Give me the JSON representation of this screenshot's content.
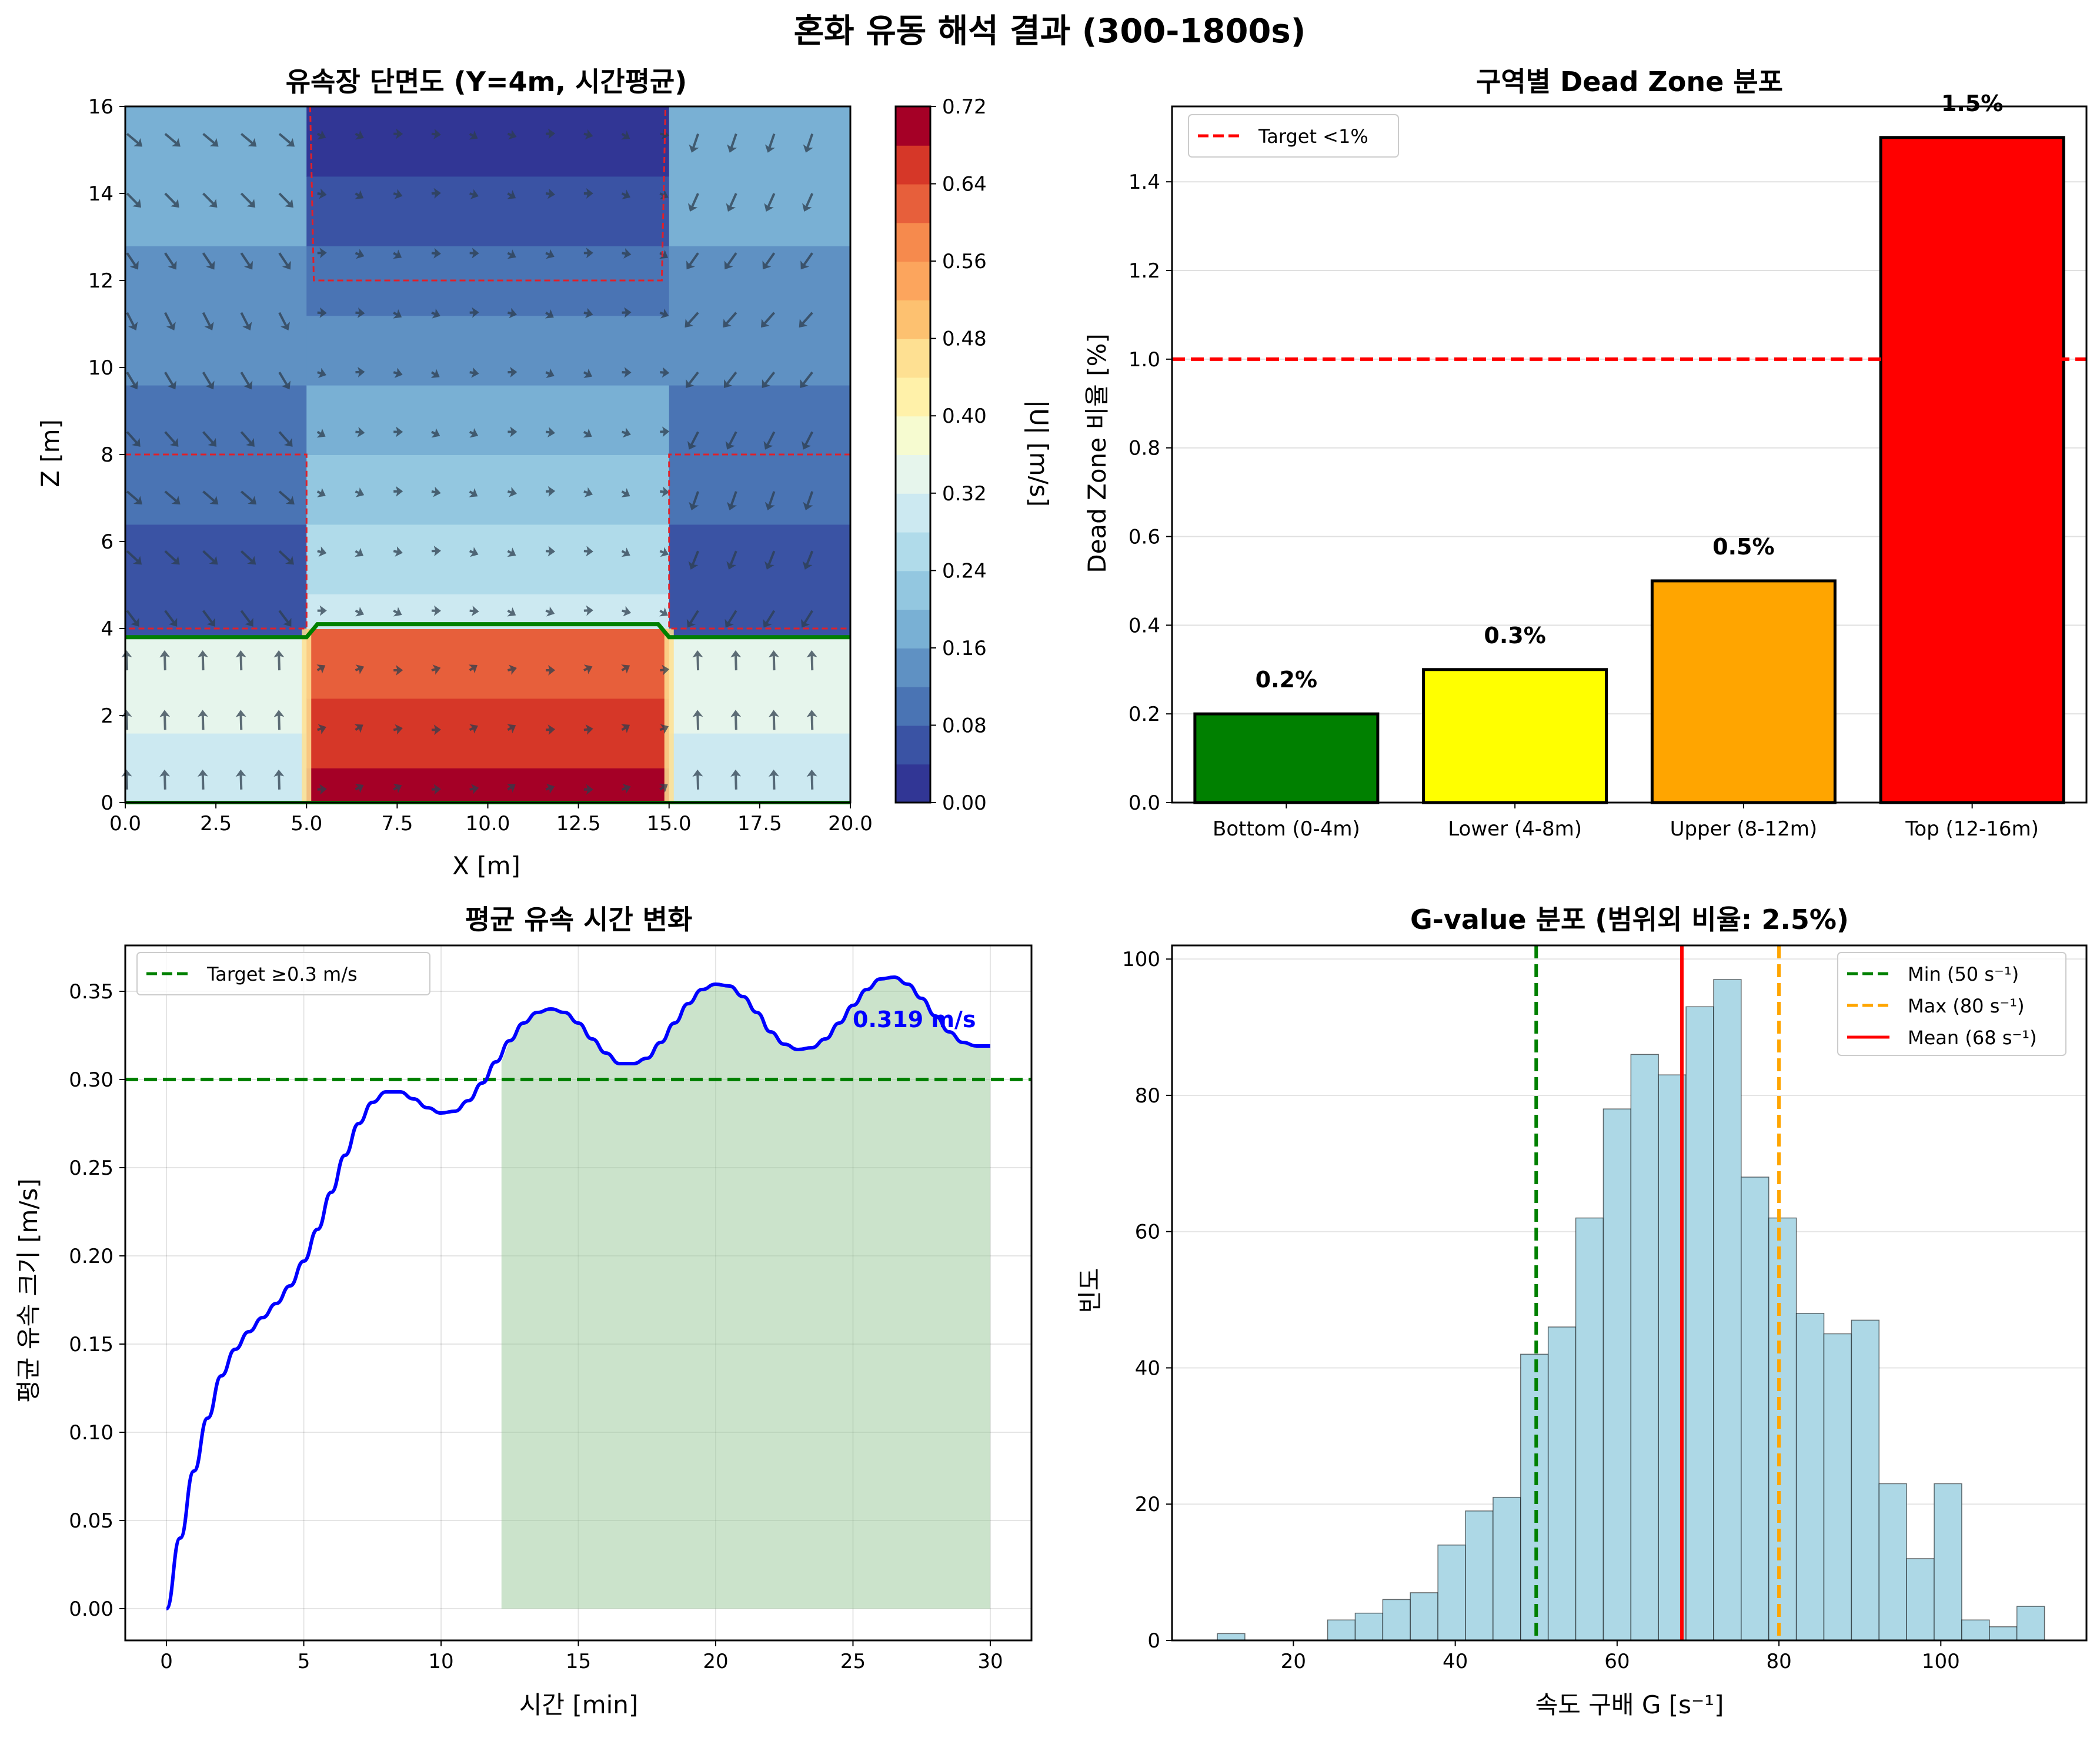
{
  "figure": {
    "suptitle": "혼화 유동 해석 결과 (300-1800s)"
  },
  "colors": {
    "green": "#008000",
    "yellow": "#ffff00",
    "orange": "#ffa500",
    "red": "#ff0000",
    "blue": "#0000ff",
    "hist": "#add8e6",
    "shade": "#98c898",
    "target": "#e00000"
  },
  "chart_data": [
    {
      "id": "velocity-field",
      "type": "heatmap",
      "title": "유속장 단면도 (Y=4m, 시간평균)",
      "xlabel": "X [m]",
      "ylabel": "Z [m]",
      "xlim": [
        0,
        20
      ],
      "ylim": [
        0,
        16
      ],
      "xticks": [
        "0.0",
        "2.5",
        "5.0",
        "7.5",
        "10.0",
        "12.5",
        "15.0",
        "17.5",
        "20.0"
      ],
      "yticks": [
        "0",
        "2",
        "4",
        "6",
        "8",
        "10",
        "12",
        "14",
        "16"
      ],
      "colorbar_label": "|U| [m/s]",
      "colorbar_range": [
        0,
        0.72
      ],
      "colorbar_ticks": [
        "0.00",
        "0.08",
        "0.16",
        "0.24",
        "0.32",
        "0.40",
        "0.48",
        "0.56",
        "0.64",
        "0.72"
      ],
      "colormap": "RdYlBu_r",
      "column_bands": [
        {
          "x": [
            0,
            5
          ],
          "bands": [
            {
              "z": [
                0,
                1.6
              ],
              "u": 0.3
            },
            {
              "z": [
                1.6,
                3.8
              ],
              "u": 0.35
            },
            {
              "z": [
                3.8,
                6.4
              ],
              "u": 0.05
            },
            {
              "z": [
                6.4,
                9.6
              ],
              "u": 0.11
            },
            {
              "z": [
                9.6,
                12.8
              ],
              "u": 0.13
            },
            {
              "z": [
                12.8,
                16
              ],
              "u": 0.19
            }
          ]
        },
        {
          "x": [
            5,
            15
          ],
          "bands": [
            {
              "z": [
                0,
                0.8
              ],
              "u": 0.7
            },
            {
              "z": [
                0.8,
                2.4
              ],
              "u": 0.66
            },
            {
              "z": [
                2.4,
                4.0
              ],
              "u": 0.62
            },
            {
              "z": [
                4.0,
                4.8
              ],
              "u": 0.29
            },
            {
              "z": [
                4.8,
                6.4
              ],
              "u": 0.25
            },
            {
              "z": [
                6.4,
                8.0
              ],
              "u": 0.21
            },
            {
              "z": [
                8.0,
                9.6
              ],
              "u": 0.18
            },
            {
              "z": [
                9.6,
                11.2
              ],
              "u": 0.13
            },
            {
              "z": [
                11.2,
                12.8
              ],
              "u": 0.11
            },
            {
              "z": [
                12.8,
                14.4
              ],
              "u": 0.07
            },
            {
              "z": [
                14.4,
                16
              ],
              "u": 0.03
            }
          ]
        },
        {
          "x": [
            15,
            20
          ],
          "bands": [
            {
              "z": [
                0,
                1.6
              ],
              "u": 0.3
            },
            {
              "z": [
                1.6,
                3.8
              ],
              "u": 0.35
            },
            {
              "z": [
                3.8,
                6.4
              ],
              "u": 0.05
            },
            {
              "z": [
                6.4,
                9.6
              ],
              "u": 0.11
            },
            {
              "z": [
                9.6,
                12.8
              ],
              "u": 0.13
            },
            {
              "z": [
                12.8,
                16
              ],
              "u": 0.19
            }
          ]
        }
      ],
      "dead_zone_outlines": [
        [
          [
            0,
            8
          ],
          [
            5,
            8
          ],
          [
            5,
            4
          ],
          [
            0,
            4
          ]
        ],
        [
          [
            20,
            8
          ],
          [
            15,
            8
          ],
          [
            15,
            4
          ],
          [
            20,
            4
          ]
        ],
        [
          [
            5.1,
            16
          ],
          [
            5.2,
            12
          ],
          [
            14.8,
            12
          ],
          [
            14.9,
            16
          ]
        ]
      ],
      "green_boundary": [
        [
          0,
          3.8
        ],
        [
          5,
          3.8
        ],
        [
          5.3,
          4.1
        ],
        [
          14.7,
          4.1
        ],
        [
          15,
          3.8
        ],
        [
          20,
          3.8
        ]
      ],
      "green_bottom": [
        [
          0,
          0
        ],
        [
          20,
          0
        ]
      ]
    },
    {
      "id": "dead-zone-bars",
      "type": "bar",
      "title": "구역별 Dead Zone 분포",
      "xlabel": "",
      "ylabel": "Dead Zone 비율 [%]",
      "ylim": [
        0,
        1.57
      ],
      "yticks": [
        "0.0",
        "0.2",
        "0.4",
        "0.6",
        "0.8",
        "1.0",
        "1.2",
        "1.4"
      ],
      "categories": [
        "Bottom (0-4m)",
        "Lower (4-8m)",
        "Upper (8-12m)",
        "Top (12-16m)"
      ],
      "values": [
        0.2,
        0.3,
        0.5,
        1.5
      ],
      "value_labels": [
        "0.2%",
        "0.3%",
        "0.5%",
        "1.5%"
      ],
      "bar_colors": [
        "#008000",
        "#ffff00",
        "#ffa500",
        "#ff0000"
      ],
      "threshold": {
        "value": 1.0,
        "label": "Target <1%"
      },
      "grid": "y",
      "legend": "upper-left"
    },
    {
      "id": "mean-velocity-time",
      "type": "line",
      "title": "평균 유속 시간 변화",
      "xlabel": "시간 [min]",
      "ylabel": "평균 유속 크기 [m/s]",
      "xlim": [
        -1.5,
        31.5
      ],
      "ylim": [
        -0.018,
        0.376
      ],
      "xticks": [
        0,
        5,
        10,
        15,
        20,
        25,
        30
      ],
      "yticks": [
        "0.00",
        "0.05",
        "0.10",
        "0.15",
        "0.20",
        "0.25",
        "0.30",
        "0.35"
      ],
      "series": [
        {
          "x": [
            0,
            0.5,
            1,
            1.5,
            2,
            2.5,
            3,
            3.5,
            4,
            4.5,
            5,
            5.5,
            6,
            6.5,
            7,
            7.5,
            8,
            8.5,
            9,
            9.5,
            10,
            10.5,
            11,
            11.5,
            12,
            12.5,
            13,
            13.5,
            14,
            14.5,
            15,
            15.5,
            16,
            16.5,
            17,
            17.5,
            18,
            18.5,
            19,
            19.5,
            20,
            20.5,
            21,
            21.5,
            22,
            22.5,
            23,
            23.5,
            24,
            24.5,
            25,
            25.5,
            26,
            26.5,
            27,
            27.5,
            28,
            28.5,
            29,
            29.5,
            30
          ],
          "y": [
            0,
            0.04,
            0.078,
            0.108,
            0.132,
            0.147,
            0.157,
            0.165,
            0.173,
            0.183,
            0.197,
            0.215,
            0.236,
            0.257,
            0.275,
            0.287,
            0.293,
            0.293,
            0.289,
            0.284,
            0.281,
            0.282,
            0.288,
            0.298,
            0.31,
            0.322,
            0.332,
            0.338,
            0.34,
            0.338,
            0.332,
            0.323,
            0.315,
            0.309,
            0.309,
            0.312,
            0.321,
            0.332,
            0.343,
            0.351,
            0.354,
            0.353,
            0.347,
            0.338,
            0.327,
            0.32,
            0.317,
            0.318,
            0.323,
            0.332,
            0.342,
            0.351,
            0.357,
            0.358,
            0.354,
            0.346,
            0.336,
            0.327,
            0.321,
            0.319,
            0.319
          ]
        }
      ],
      "end_label": "0.319 m/s",
      "threshold": {
        "value": 0.3,
        "label": "Target ≥0.3 m/s"
      },
      "shaded_region": [
        12.2,
        30
      ],
      "grid": true,
      "legend": "upper-left"
    },
    {
      "id": "g-value-hist",
      "type": "bar",
      "title": "G-value 분포 (범위외 비율: 2.5%)",
      "xlabel": "속도 구배 G [s⁻¹]",
      "ylabel": "빈도",
      "xlim": [
        5,
        118
      ],
      "ylim": [
        0,
        102
      ],
      "xticks": [
        20,
        40,
        60,
        80,
        100
      ],
      "yticks": [
        0,
        20,
        40,
        60,
        80,
        100
      ],
      "bin_start": 10.6,
      "bin_width": 3.407,
      "counts": [
        1,
        0,
        0,
        0,
        3,
        4,
        6,
        7,
        14,
        19,
        21,
        42,
        46,
        62,
        78,
        86,
        83,
        93,
        97,
        68,
        62,
        48,
        45,
        47,
        23,
        12,
        23,
        3,
        2,
        5
      ],
      "vlines": [
        {
          "value": 50,
          "label": "Min (50 s⁻¹)",
          "color": "#008000",
          "style": "dashed"
        },
        {
          "value": 80,
          "label": "Max (80 s⁻¹)",
          "color": "#ffa500",
          "style": "dashed"
        },
        {
          "value": 68,
          "label": "Mean (68 s⁻¹)",
          "color": "#ff0000",
          "style": "solid"
        }
      ],
      "grid": "y",
      "legend": "upper-right"
    }
  ]
}
